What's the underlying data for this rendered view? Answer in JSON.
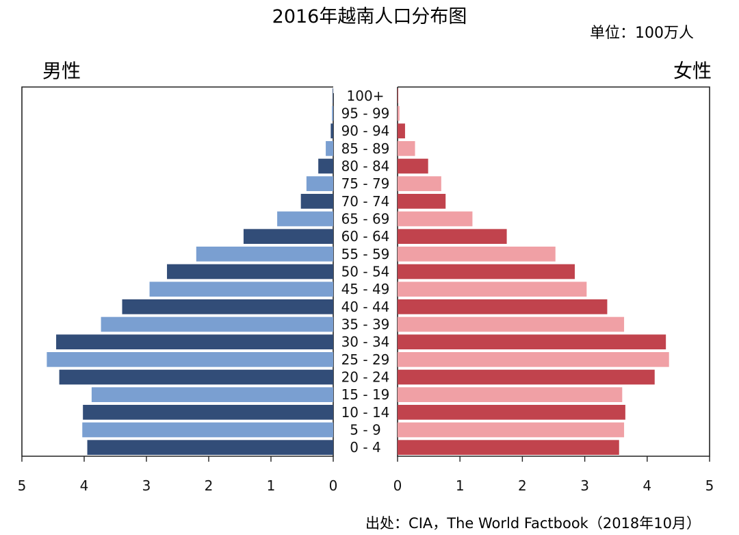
{
  "header": {
    "title": "2016年越南人口分布图",
    "unit": "单位：100万人",
    "male_label": "男性",
    "female_label": "女性"
  },
  "footer": {
    "source": "出处：CIA，The World Factbook（2018年10月）"
  },
  "colors": {
    "male_dark": "#324d78",
    "male_light": "#7a9fd1",
    "female_dark": "#c1434d",
    "female_light": "#f0a0a5",
    "frame": "#222222"
  },
  "chart_data": {
    "type": "bar",
    "orientation": "horizontal-population-pyramid",
    "unit": "100万人",
    "categories": [
      "100+",
      "95 - 99",
      "90 - 94",
      "85 - 89",
      "80 - 84",
      "75 - 79",
      "70 - 74",
      "65 - 69",
      "60 - 64",
      "55 - 59",
      "50 - 54",
      "45 - 49",
      "40 - 44",
      "35 - 39",
      "30 - 34",
      "25 - 29",
      "20 - 24",
      "15 - 19",
      "10 - 14",
      "5 - 9",
      "0 - 4"
    ],
    "series": [
      {
        "name": "男性",
        "values": [
          0.01,
          0.02,
          0.04,
          0.12,
          0.24,
          0.43,
          0.52,
          0.9,
          1.44,
          2.2,
          2.67,
          2.95,
          3.39,
          3.73,
          4.45,
          4.6,
          4.4,
          3.88,
          4.02,
          4.03,
          3.95
        ]
      },
      {
        "name": "女性",
        "values": [
          0.01,
          0.03,
          0.12,
          0.28,
          0.49,
          0.7,
          0.77,
          1.2,
          1.75,
          2.53,
          2.84,
          3.03,
          3.36,
          3.63,
          4.3,
          4.35,
          4.12,
          3.6,
          3.65,
          3.63,
          3.55
        ]
      }
    ],
    "xlim": [
      0,
      5
    ],
    "left_axis_ticks": [
      "5",
      "4",
      "3",
      "2",
      "1",
      "0"
    ],
    "right_axis_ticks": [
      "0",
      "1",
      "2",
      "3",
      "4",
      "5"
    ]
  }
}
